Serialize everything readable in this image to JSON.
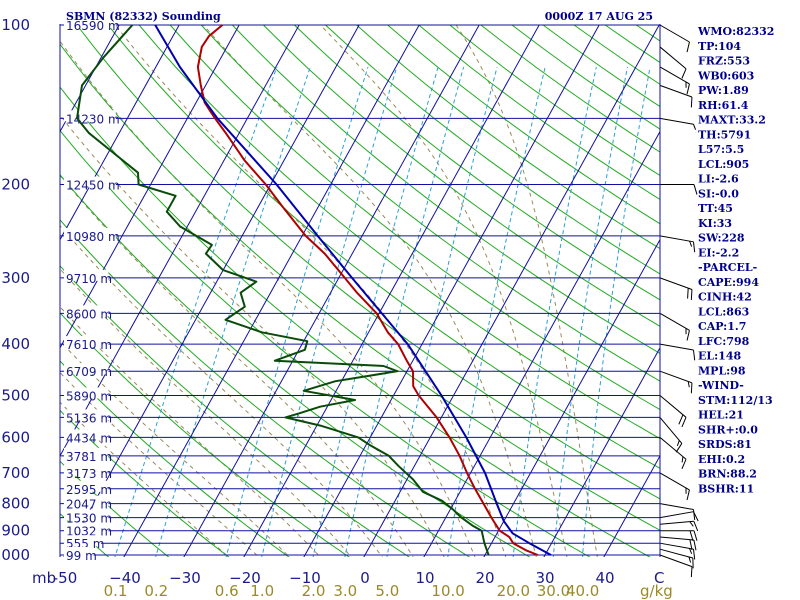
{
  "header": {
    "station": "SBMN (82332) Sounding",
    "time": "0000Z 17 AUG 25"
  },
  "axes": {
    "pressure_unit": "mb",
    "mixing_ratio_unit": "g/kg",
    "temp_unit": "C"
  },
  "colors": {
    "temp": "#b00000",
    "dewpoint": "#0a4a0a",
    "parcel": "#0000b0",
    "isobar": "#1010a0",
    "isotherm": "#1010a0",
    "dry_adiabat": "#22aa22",
    "moist_adiabat": "#9a8a5a",
    "mixing_ratio": "#2aa0d0"
  },
  "indices": [
    "WMO:82332",
    "TP:104",
    "FRZ:553",
    "WB0:603",
    "PW:1.89",
    "RH:61.4",
    "MAXT:33.2",
    "TH:5791",
    "L57:5.5",
    "LCL:905",
    "LI:-2.6",
    "SI:-0.0",
    "TT:45",
    "KI:33",
    "SW:228",
    "EI:-2.2",
    "-PARCEL-",
    "CAPE:994",
    "CINH:42",
    "LCL:863",
    "CAP:1.7",
    "LFC:798",
    "EL:148",
    "MPL:98",
    "-WIND-",
    "STM:112/13",
    "HEL:21",
    "SHR+:0.0",
    "SRDS:81",
    "EHI:0.2",
    "BRN:88.2",
    "BSHR:11"
  ],
  "chart_data": {
    "type": "line",
    "title": "SBMN (82332) Sounding",
    "subtitle": "0000Z 17 AUG 25",
    "xlabel": "C",
    "ylabel": "mb",
    "x_range": [
      -50,
      50
    ],
    "p_range": [
      1000,
      100
    ],
    "pressure_ticks": [
      100,
      200,
      300,
      400,
      500,
      600,
      700,
      800,
      900,
      1000
    ],
    "temp_ticks": [
      -50,
      -40,
      -30,
      -20,
      -10,
      0,
      10,
      20,
      30,
      40
    ],
    "temp_tick_labels": [
      "-50",
      "−40",
      "−30",
      "−20",
      "−10",
      "0",
      "10",
      "20",
      "30",
      "40"
    ],
    "end_temp_label": "C",
    "mixing_ratio_ticks": [
      0.1,
      0.2,
      0.6,
      1.0,
      2.0,
      3.0,
      5.0,
      10.0,
      20.0,
      30.0,
      40.0
    ],
    "mixing_ratio_labels": [
      "0.1",
      "0.2",
      "0.6",
      "1.0",
      "2.0",
      "3.0",
      "5.0",
      "10.0",
      "20.0",
      "30.0",
      "40.0"
    ],
    "heights": [
      {
        "p": 100,
        "label": "16590 m"
      },
      {
        "p": 150,
        "label": "14230 m"
      },
      {
        "p": 200,
        "label": "12450 m"
      },
      {
        "p": 250,
        "label": "10980 m"
      },
      {
        "p": 300,
        "label": "9710 m"
      },
      {
        "p": 350,
        "label": "8600 m"
      },
      {
        "p": 400,
        "label": "7610 m"
      },
      {
        "p": 450,
        "label": "6709 m"
      },
      {
        "p": 500,
        "label": "5890 m"
      },
      {
        "p": 550,
        "label": "5136 m"
      },
      {
        "p": 600,
        "label": "4434 m"
      },
      {
        "p": 650,
        "label": "3781 m"
      },
      {
        "p": 700,
        "label": "3173 m"
      },
      {
        "p": 750,
        "label": "2595 m"
      },
      {
        "p": 800,
        "label": "2047 m"
      },
      {
        "p": 850,
        "label": "1530 m"
      },
      {
        "p": 900,
        "label": "1032 m"
      },
      {
        "p": 950,
        "label": "555 m"
      },
      {
        "p": 1000,
        "label": "99 m"
      }
    ],
    "series": [
      {
        "name": "temperature",
        "points": [
          [
            1000,
            28.8
          ],
          [
            980,
            26.4
          ],
          [
            950,
            23.6
          ],
          [
            925,
            22.4
          ],
          [
            900,
            20.2
          ],
          [
            850,
            17.6
          ],
          [
            800,
            15.0
          ],
          [
            750,
            12.2
          ],
          [
            700,
            9.4
          ],
          [
            650,
            6.6
          ],
          [
            600,
            3.2
          ],
          [
            550,
            -0.8
          ],
          [
            500,
            -5.8
          ],
          [
            480,
            -7.6
          ],
          [
            450,
            -9.0
          ],
          [
            430,
            -11.0
          ],
          [
            400,
            -14.0
          ],
          [
            380,
            -16.8
          ],
          [
            350,
            -20.4
          ],
          [
            320,
            -25.6
          ],
          [
            300,
            -29.0
          ],
          [
            270,
            -34.6
          ],
          [
            250,
            -39.4
          ],
          [
            220,
            -46.0
          ],
          [
            200,
            -50.8
          ],
          [
            180,
            -56.6
          ],
          [
            160,
            -62.2
          ],
          [
            150,
            -65.4
          ],
          [
            140,
            -68.6
          ],
          [
            130,
            -70.8
          ],
          [
            120,
            -73.0
          ],
          [
            110,
            -74.2
          ],
          [
            105,
            -74.0
          ],
          [
            100,
            -72.8
          ]
        ]
      },
      {
        "name": "dewpoint",
        "points": [
          [
            1000,
            20.6
          ],
          [
            950,
            18.8
          ],
          [
            900,
            17.2
          ],
          [
            880,
            15.2
          ],
          [
            850,
            12.6
          ],
          [
            820,
            10.4
          ],
          [
            790,
            7.8
          ],
          [
            760,
            3.8
          ],
          [
            720,
            1.0
          ],
          [
            680,
            -2.6
          ],
          [
            650,
            -5.2
          ],
          [
            620,
            -9.4
          ],
          [
            600,
            -12.0
          ],
          [
            570,
            -19.4
          ],
          [
            550,
            -26.0
          ],
          [
            540,
            -24.0
          ],
          [
            525,
            -21.2
          ],
          [
            510,
            -16.0
          ],
          [
            490,
            -25.4
          ],
          [
            470,
            -21.0
          ],
          [
            450,
            -11.6
          ],
          [
            440,
            -14.4
          ],
          [
            430,
            -33.0
          ],
          [
            410,
            -29.0
          ],
          [
            395,
            -29.4
          ],
          [
            380,
            -37.8
          ],
          [
            360,
            -45.0
          ],
          [
            340,
            -43.0
          ],
          [
            320,
            -45.0
          ],
          [
            305,
            -43.4
          ],
          [
            290,
            -50.0
          ],
          [
            270,
            -54.4
          ],
          [
            260,
            -54.2
          ],
          [
            240,
            -61.2
          ],
          [
            225,
            -64.8
          ],
          [
            210,
            -64.8
          ],
          [
            200,
            -72.0
          ],
          [
            190,
            -73.2
          ],
          [
            160,
            -85.0
          ],
          [
            150,
            -88.4
          ],
          [
            130,
            -90.6
          ],
          [
            115,
            -89.6
          ],
          [
            100,
            -87.8
          ]
        ]
      },
      {
        "name": "parcel",
        "points": [
          [
            1000,
            31.0
          ],
          [
            950,
            26.3
          ],
          [
            910,
            22.6
          ],
          [
            863,
            20.0
          ],
          [
            800,
            17.2
          ],
          [
            700,
            12.4
          ],
          [
            600,
            6.0
          ],
          [
            500,
            -2.0
          ],
          [
            400,
            -12.4
          ],
          [
            300,
            -27.8
          ],
          [
            250,
            -37.4
          ],
          [
            200,
            -49.0
          ],
          [
            150,
            -65.0
          ],
          [
            120,
            -76.0
          ],
          [
            100,
            -84.0
          ]
        ]
      }
    ],
    "wind_barbs": [
      {
        "p": 1000,
        "dir": 110,
        "spd": 10
      },
      {
        "p": 975,
        "dir": 105,
        "spd": 15
      },
      {
        "p": 950,
        "dir": 100,
        "spd": 15
      },
      {
        "p": 925,
        "dir": 95,
        "spd": 20
      },
      {
        "p": 900,
        "dir": 90,
        "spd": 20
      },
      {
        "p": 875,
        "dir": 85,
        "spd": 15
      },
      {
        "p": 850,
        "dir": 80,
        "spd": 10
      },
      {
        "p": 800,
        "dir": 100,
        "spd": 10
      },
      {
        "p": 700,
        "dir": 120,
        "spd": 15
      },
      {
        "p": 600,
        "dir": 130,
        "spd": 15
      },
      {
        "p": 550,
        "dir": 140,
        "spd": 15
      },
      {
        "p": 500,
        "dir": 130,
        "spd": 20
      },
      {
        "p": 450,
        "dir": 110,
        "spd": 15
      },
      {
        "p": 400,
        "dir": 100,
        "spd": 10
      },
      {
        "p": 350,
        "dir": 120,
        "spd": 15
      },
      {
        "p": 300,
        "dir": 110,
        "spd": 20
      },
      {
        "p": 250,
        "dir": 100,
        "spd": 15
      },
      {
        "p": 200,
        "dir": 90,
        "spd": 10
      },
      {
        "p": 150,
        "dir": 100,
        "spd": 5
      },
      {
        "p": 130,
        "dir": 110,
        "spd": 10
      },
      {
        "p": 120,
        "dir": 120,
        "spd": 15
      },
      {
        "p": 110,
        "dir": 130,
        "spd": 10
      },
      {
        "p": 100,
        "dir": 120,
        "spd": 10
      }
    ]
  }
}
